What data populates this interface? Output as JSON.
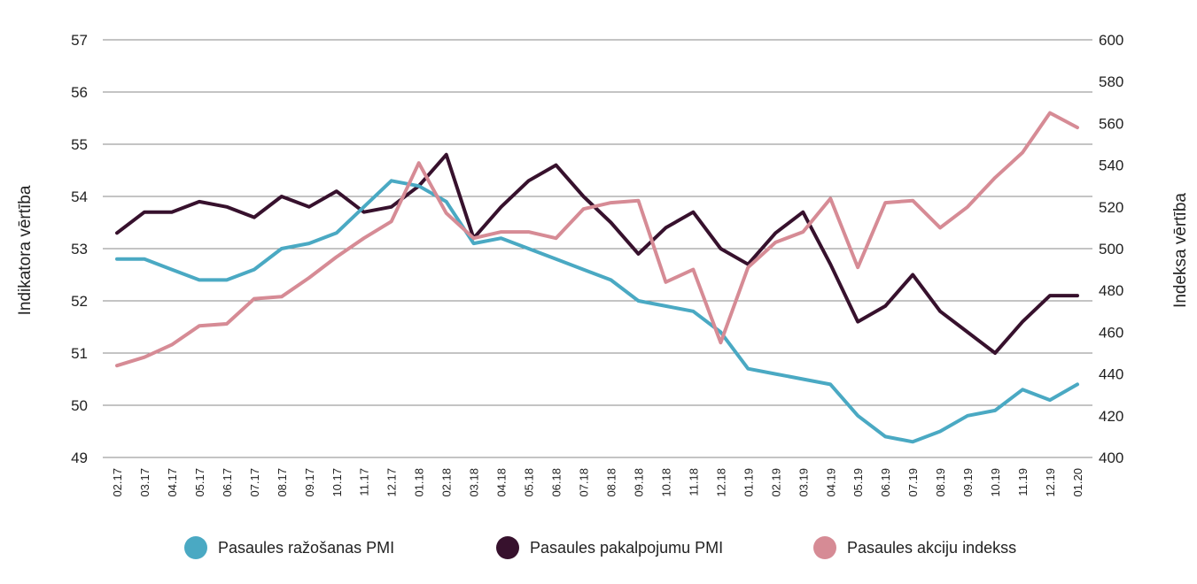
{
  "chart_data": {
    "type": "line",
    "title": "",
    "ylabel_left": "Indikatora vērtība",
    "ylabel_right": "Indeksa vērtība",
    "ylim_left": [
      49,
      57
    ],
    "ylim_right": [
      400,
      600
    ],
    "yticks_left": [
      "49",
      "50",
      "51",
      "52",
      "53",
      "54",
      "55",
      "56",
      "57"
    ],
    "yticks_right": [
      "400",
      "420",
      "440",
      "460",
      "480",
      "500",
      "520",
      "540",
      "560",
      "580",
      "600"
    ],
    "grid": true,
    "legend_position": "bottom",
    "categories": [
      "02.17",
      "03.17",
      "04.17",
      "05.17",
      "06.17",
      "07.17",
      "08.17",
      "09.17",
      "10.17",
      "11.17",
      "12.17",
      "01.18",
      "02.18",
      "03.18",
      "04.18",
      "05.18",
      "06.18",
      "07.18",
      "08.18",
      "09.18",
      "10.18",
      "11.18",
      "12.18",
      "01.19",
      "02.19",
      "03.19",
      "04.19",
      "05.19",
      "06.19",
      "07.19",
      "08.19",
      "09.19",
      "10.19",
      "11.19",
      "12.19",
      "01.20"
    ],
    "series": [
      {
        "name": "Pasaules ražošanas PMI",
        "axis": "left",
        "color": "#4aa9c3",
        "values": [
          52.8,
          52.8,
          52.6,
          52.4,
          52.4,
          52.6,
          53.0,
          53.1,
          53.3,
          53.8,
          54.3,
          54.2,
          53.9,
          53.1,
          53.2,
          53.0,
          52.8,
          52.6,
          52.4,
          52.0,
          51.9,
          51.8,
          51.4,
          50.7,
          50.6,
          50.5,
          50.4,
          49.8,
          49.4,
          49.3,
          49.5,
          49.8,
          49.9,
          50.3,
          50.1,
          50.4
        ]
      },
      {
        "name": "Pasaules pakalpojumu PMI",
        "axis": "left",
        "color": "#37112d",
        "values": [
          53.3,
          53.7,
          53.7,
          53.9,
          53.8,
          53.6,
          54.0,
          53.8,
          54.1,
          53.7,
          53.8,
          54.2,
          54.8,
          53.2,
          53.8,
          54.3,
          54.6,
          54.0,
          53.5,
          52.9,
          53.4,
          53.7,
          53.0,
          52.7,
          53.3,
          53.7,
          52.7,
          51.6,
          51.9,
          52.5,
          51.8,
          51.4,
          51.0,
          51.6,
          52.1,
          52.1
        ]
      },
      {
        "name": "Pasaules akciju indekss",
        "axis": "right",
        "color": "#d68b95",
        "values": [
          444,
          448,
          454,
          463,
          464,
          476,
          477,
          486,
          496,
          505,
          513,
          541,
          517,
          505,
          508,
          508,
          505,
          519,
          522,
          523,
          484,
          490,
          455,
          491,
          503,
          508,
          524,
          491,
          522,
          523,
          510,
          520,
          534,
          546,
          565,
          558
        ]
      }
    ]
  }
}
